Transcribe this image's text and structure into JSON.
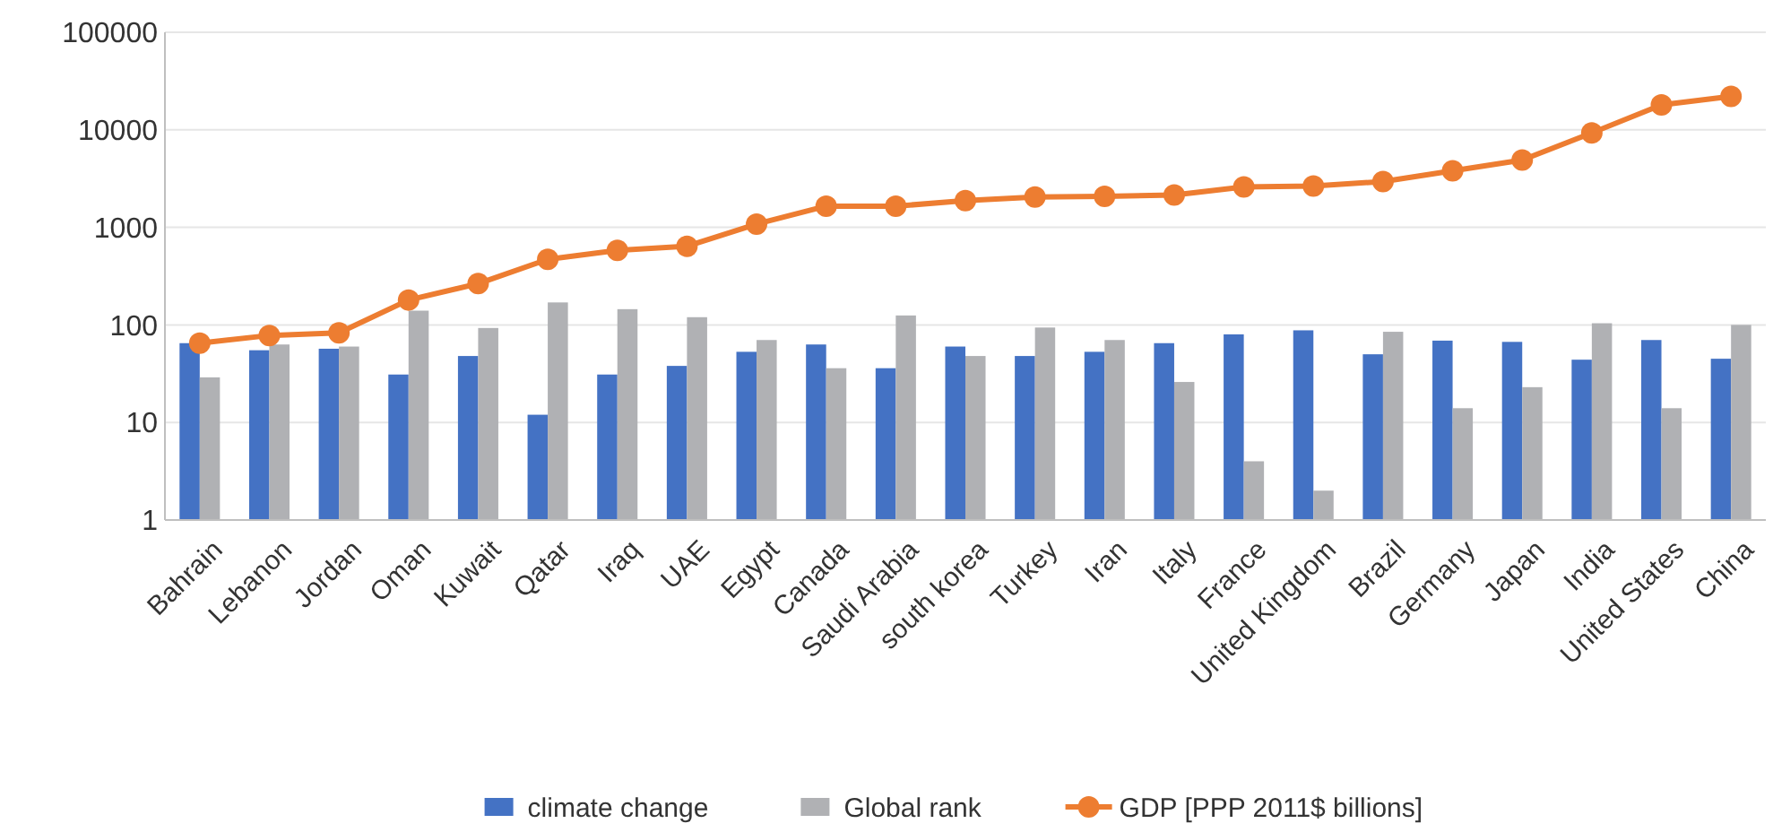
{
  "chart_data": {
    "type": "bar",
    "categories": [
      "Bahrain",
      "Lebanon",
      "Jordan",
      "Oman",
      "Kuwait",
      "Qatar",
      "Iraq",
      "UAE",
      "Egypt",
      "Canada",
      "Saudi Arabia",
      "south korea",
      "Turkey",
      "Iran",
      "Italy",
      "France",
      "United Kingdom",
      "Brazil",
      "Germany",
      "Japan",
      "India",
      "United States",
      "China"
    ],
    "series": [
      {
        "name": "climate change",
        "color": "#4472c4",
        "values": [
          65,
          55,
          57,
          31,
          48,
          12,
          31,
          38,
          53,
          63,
          36,
          60,
          48,
          53,
          65,
          80,
          88,
          50,
          69,
          67,
          44,
          70,
          45
        ]
      },
      {
        "name": "Global rank",
        "color": "#b0b1b4",
        "values": [
          29,
          63,
          60,
          140,
          93,
          170,
          145,
          120,
          70,
          36,
          125,
          48,
          94,
          70,
          26,
          4,
          2,
          85,
          14,
          23,
          104,
          14,
          100
        ]
      },
      {
        "name": "GDP [PPP 2011$ billions]",
        "type": "line",
        "color": "#ed7d31",
        "values": [
          65,
          78,
          83,
          180,
          265,
          470,
          580,
          640,
          1080,
          1650,
          1650,
          1880,
          2050,
          2080,
          2150,
          2600,
          2650,
          2950,
          3800,
          4900,
          9300,
          18000,
          22000
        ]
      }
    ],
    "log": true,
    "ylim": [
      1,
      100000
    ],
    "yticks": [
      1,
      10,
      100,
      1000,
      10000,
      100000
    ],
    "grid": "y",
    "legend": "bottom",
    "marker": "circle"
  }
}
